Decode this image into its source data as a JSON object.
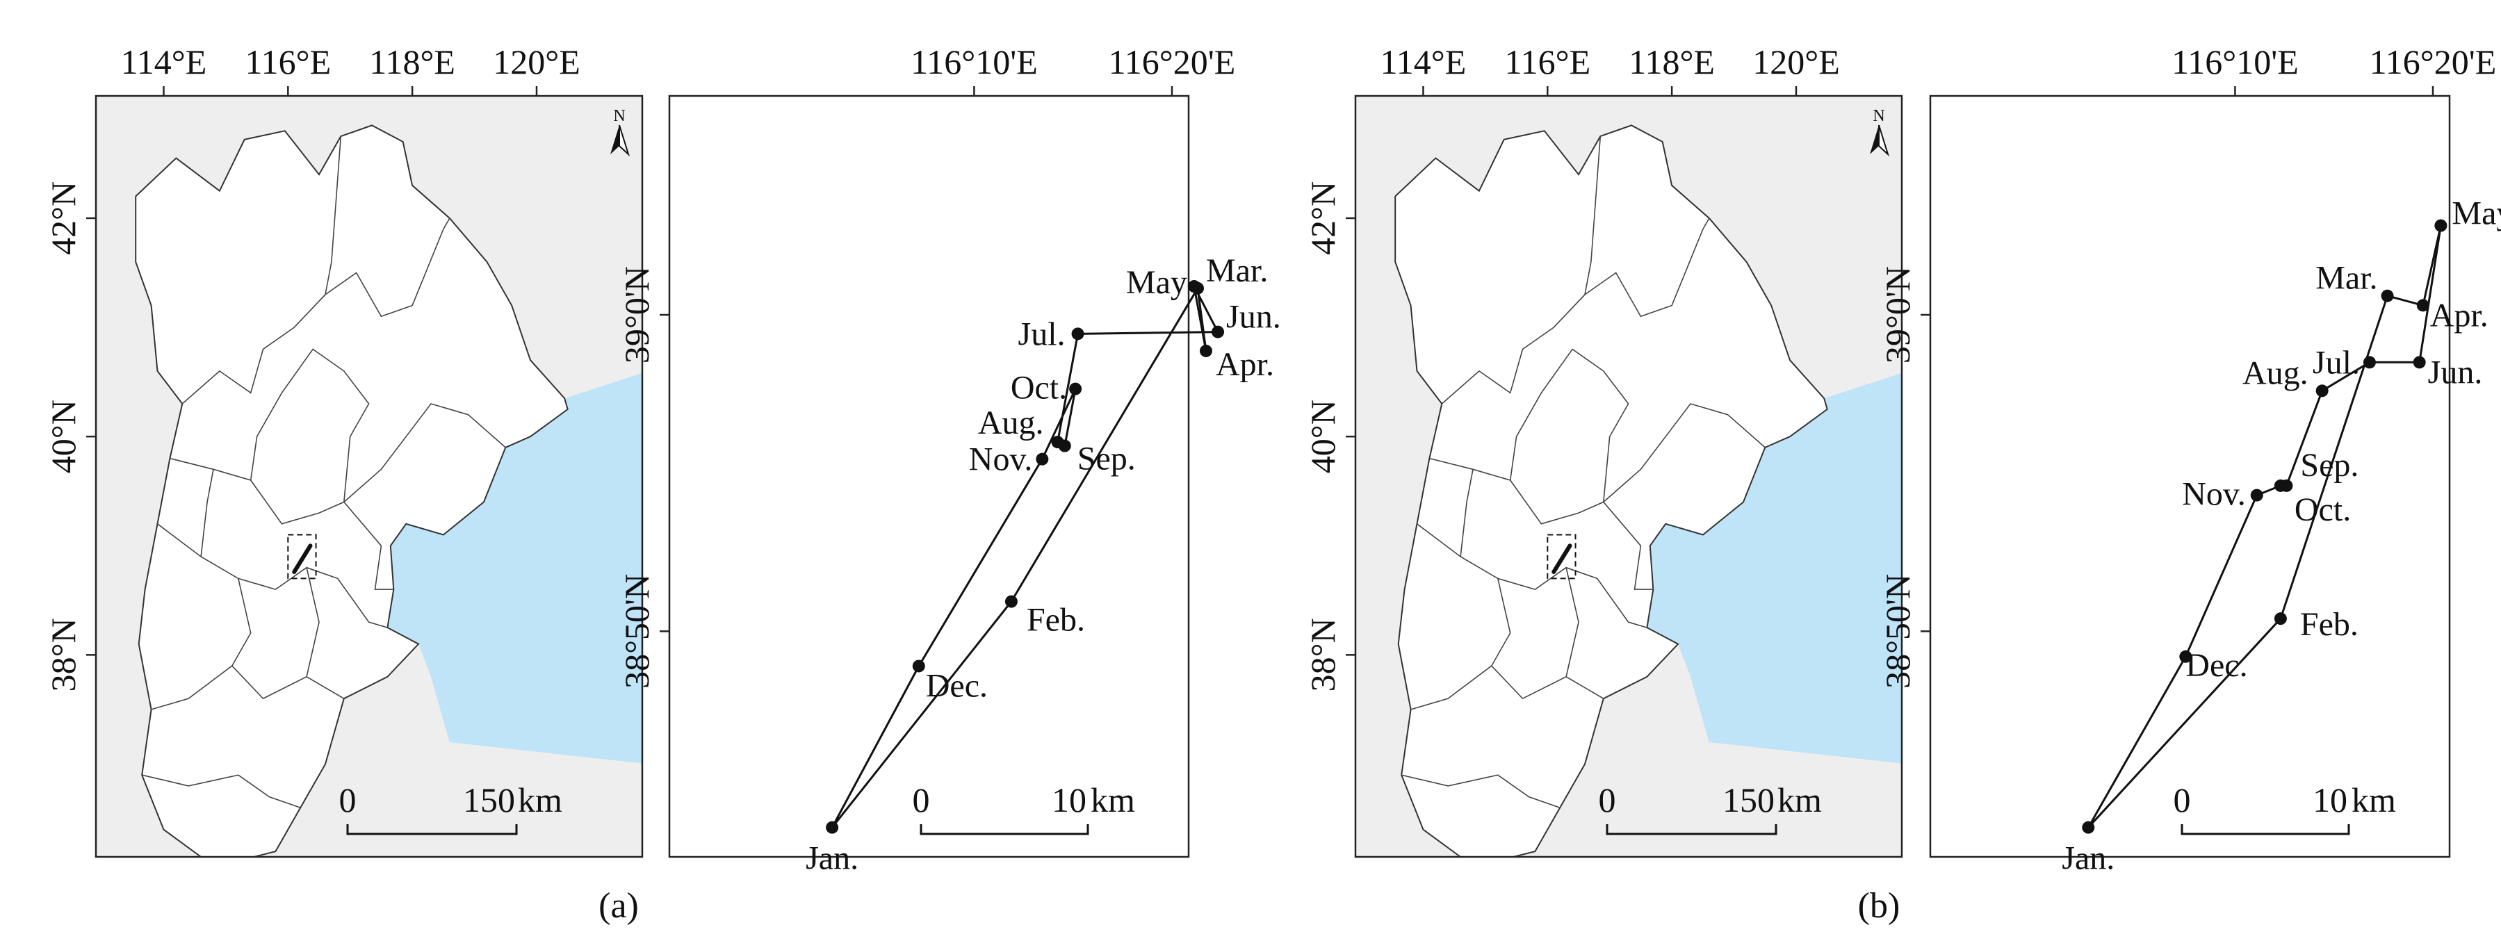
{
  "panels": [
    {
      "caption": "(a)",
      "overview": {
        "lon_ticks": [
          "114°E",
          "116°E",
          "118°E",
          "120°E"
        ],
        "lat_ticks": [
          "42°N",
          "40°N",
          "38°N"
        ],
        "north_label": "N",
        "scale": {
          "start": "0",
          "end": "150",
          "unit": "km"
        },
        "sea_color": "#bfe3f7",
        "land_color": "#ffffff",
        "background_color": "#eeeeee"
      },
      "detail": {
        "lon_ticks": [
          "116°10'E",
          "116°20'E"
        ],
        "lat_ticks": [
          "39°0'N",
          "38°50'N"
        ],
        "scale": {
          "start": "0",
          "end": "10",
          "unit": "km"
        },
        "track": [
          {
            "month": "Jan.",
            "lon": 116.047,
            "lat": 38.73
          },
          {
            "month": "Feb.",
            "lon": 116.198,
            "lat": 38.849
          },
          {
            "month": "Mar.",
            "lon": 116.355,
            "lat": 39.014
          },
          {
            "month": "Apr.",
            "lon": 116.362,
            "lat": 38.981
          },
          {
            "month": "May",
            "lon": 116.352,
            "lat": 39.015
          },
          {
            "month": "Jun.",
            "lon": 116.372,
            "lat": 38.991
          },
          {
            "month": "Jul.",
            "lon": 116.254,
            "lat": 38.99
          },
          {
            "month": "Aug.",
            "lon": 116.237,
            "lat": 38.933
          },
          {
            "month": "Sep.",
            "lon": 116.243,
            "lat": 38.931
          },
          {
            "month": "Oct.",
            "lon": 116.252,
            "lat": 38.961
          },
          {
            "month": "Nov.",
            "lon": 116.224,
            "lat": 38.924
          },
          {
            "month": "Dec.",
            "lon": 116.12,
            "lat": 38.815
          }
        ]
      }
    },
    {
      "caption": "(b)",
      "overview": {
        "lon_ticks": [
          "114°E",
          "116°E",
          "118°E",
          "120°E"
        ],
        "lat_ticks": [
          "42°N",
          "40°N",
          "38°N"
        ],
        "north_label": "N",
        "scale": {
          "start": "0",
          "end": "150",
          "unit": "km"
        },
        "sea_color": "#bfe3f7",
        "land_color": "#ffffff",
        "background_color": "#eeeeee"
      },
      "detail": {
        "lon_ticks": [
          "116°10'E",
          "116°20'E"
        ],
        "lat_ticks": [
          "39°0'N",
          "38°50'N"
        ],
        "scale": {
          "start": "0",
          "end": "10",
          "unit": "km"
        },
        "track": [
          {
            "month": "Jan.",
            "lon": 116.043,
            "lat": 38.73
          },
          {
            "month": "Feb.",
            "lon": 116.205,
            "lat": 38.84
          },
          {
            "month": "Mar.",
            "lon": 116.295,
            "lat": 39.01
          },
          {
            "month": "Apr.",
            "lon": 116.325,
            "lat": 39.005
          },
          {
            "month": "May",
            "lon": 116.34,
            "lat": 39.047
          },
          {
            "month": "Jun.",
            "lon": 116.322,
            "lat": 38.975
          },
          {
            "month": "Jul.",
            "lon": 116.28,
            "lat": 38.975
          },
          {
            "month": "Aug.",
            "lon": 116.24,
            "lat": 38.96
          },
          {
            "month": "Sep.",
            "lon": 116.21,
            "lat": 38.91
          },
          {
            "month": "Oct.",
            "lon": 116.205,
            "lat": 38.91
          },
          {
            "month": "Nov.",
            "lon": 116.185,
            "lat": 38.905
          },
          {
            "month": "Dec.",
            "lon": 116.125,
            "lat": 38.82
          }
        ]
      }
    }
  ]
}
